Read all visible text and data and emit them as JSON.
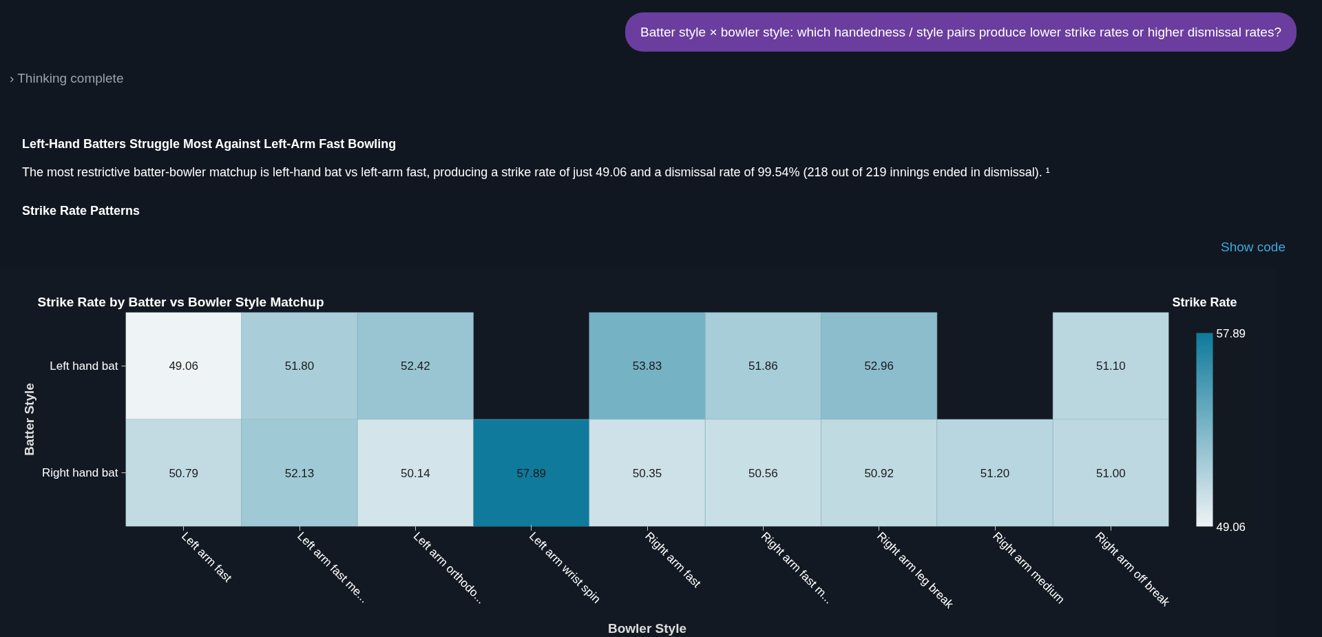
{
  "chart_data": {
    "type": "heatmap",
    "title": "Strike Rate by Batter vs Bowler Style Matchup",
    "xlabel": "Bowler Style",
    "ylabel": "Batter Style",
    "clabel": "Strike Rate",
    "categories": [
      "Left arm fast",
      "Left arm fast me...",
      "Left arm orthodo...",
      "Left arm wrist spin",
      "Right arm fast",
      "Right arm fast m...",
      "Right arm leg break",
      "Right arm medium",
      "Right arm off break"
    ],
    "y_categories": [
      "Left hand bat",
      "Right hand bat"
    ],
    "cells": [
      [
        49.06,
        51.8,
        52.42,
        null,
        53.83,
        51.86,
        52.96,
        null,
        51.1
      ],
      [
        50.79,
        52.13,
        50.14,
        57.89,
        50.35,
        50.56,
        50.92,
        51.2,
        51.0
      ]
    ],
    "cell_labels": [
      [
        "49.06",
        "51.80",
        "52.42",
        null,
        "53.83",
        "51.86",
        "52.96",
        null,
        "51.10"
      ],
      [
        "50.79",
        "52.13",
        "50.14",
        "57.89",
        "50.35",
        "50.56",
        "50.92",
        "51.20",
        "51.00"
      ]
    ],
    "clim": [
      49.06,
      57.89
    ],
    "cticks": [
      49.06,
      57.89
    ],
    "grid": false,
    "annotations": [
      "Batter style × bowler style: which handedness / style pairs produce lower strike rates or higher dismissal rates?",
      "› Thinking complete",
      "Left-Hand Batters Struggle Most Against Left-Arm Fast Bowling",
      "The most restrictive batter-bowler matchup is left-hand bat vs left-arm fast, producing a strike rate of just 49.06 and a dismissal rate of 99.54% (218 out of 219 innings ended in dismissal). ¹",
      "Strike Rate Patterns",
      "Show code"
    ]
  }
}
